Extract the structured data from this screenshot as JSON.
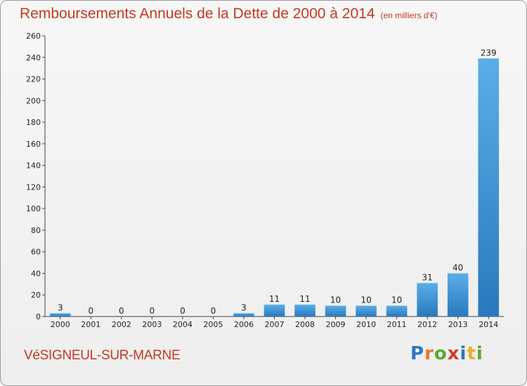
{
  "title": "Remboursements Annuels de la Dette de 2000 à 2014",
  "title_unit": "(en milliers d'€)",
  "commune": "VéSIGNEUL-SUR-MARNE",
  "logo": {
    "letters": [
      "P",
      "r",
      "o",
      "x",
      "i",
      "t",
      "i"
    ],
    "colors": [
      "#2b78c2",
      "#e8762c",
      "#5aa832",
      "#d93a2b",
      "#2b78c2",
      "#e8b02c",
      "#5aa832"
    ]
  },
  "chart_data": {
    "type": "bar",
    "categories": [
      "2000",
      "2001",
      "2002",
      "2003",
      "2004",
      "2005",
      "2006",
      "2007",
      "2008",
      "2009",
      "2010",
      "2011",
      "2012",
      "2013",
      "2014"
    ],
    "values": [
      3,
      0,
      0,
      0,
      0,
      0,
      3,
      11,
      11,
      10,
      10,
      10,
      31,
      40,
      239
    ],
    "title": "Remboursements Annuels de la Dette de 2000 à 2014",
    "xlabel": "",
    "ylabel": "",
    "ylim": [
      0,
      260
    ],
    "yticks": [
      0,
      20,
      40,
      60,
      80,
      100,
      120,
      140,
      160,
      180,
      200,
      220,
      240,
      260
    ],
    "grid": false,
    "bar_color": "#3a8fd6"
  }
}
